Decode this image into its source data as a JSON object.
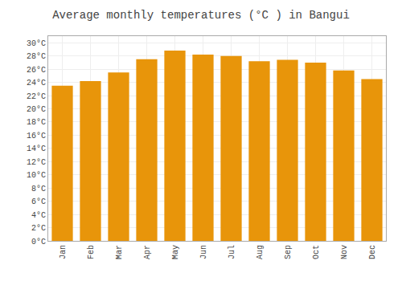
{
  "chart_data": {
    "type": "bar",
    "title": "Average monthly temperatures (°C ) in Bangui",
    "categories": [
      "Jan",
      "Feb",
      "Mar",
      "Apr",
      "May",
      "Jun",
      "Jul",
      "Aug",
      "Sep",
      "Oct",
      "Nov",
      "Dec"
    ],
    "values": [
      23.5,
      24.2,
      25.5,
      27.5,
      28.8,
      28.2,
      28.0,
      27.2,
      27.4,
      27.0,
      25.8,
      24.5
    ],
    "color": "#E8950A",
    "ylim": [
      0,
      31
    ],
    "yticks": [
      {
        "value": 0,
        "label": "0°C"
      },
      {
        "value": 2,
        "label": "2°C"
      },
      {
        "value": 4,
        "label": "4°C"
      },
      {
        "value": 6,
        "label": "6°C"
      },
      {
        "value": 8,
        "label": "8°C"
      },
      {
        "value": 10,
        "label": "10°C"
      },
      {
        "value": 12,
        "label": "12°C"
      },
      {
        "value": 14,
        "label": "14°C"
      },
      {
        "value": 16,
        "label": "16°C"
      },
      {
        "value": 18,
        "label": "18°C"
      },
      {
        "value": 20,
        "label": "20°C"
      },
      {
        "value": 22,
        "label": "22°C"
      },
      {
        "value": 24,
        "label": "24°C"
      },
      {
        "value": 26,
        "label": "26°C"
      },
      {
        "value": 28,
        "label": "28°C"
      },
      {
        "value": 30,
        "label": "30°C"
      }
    ],
    "grid": true
  }
}
